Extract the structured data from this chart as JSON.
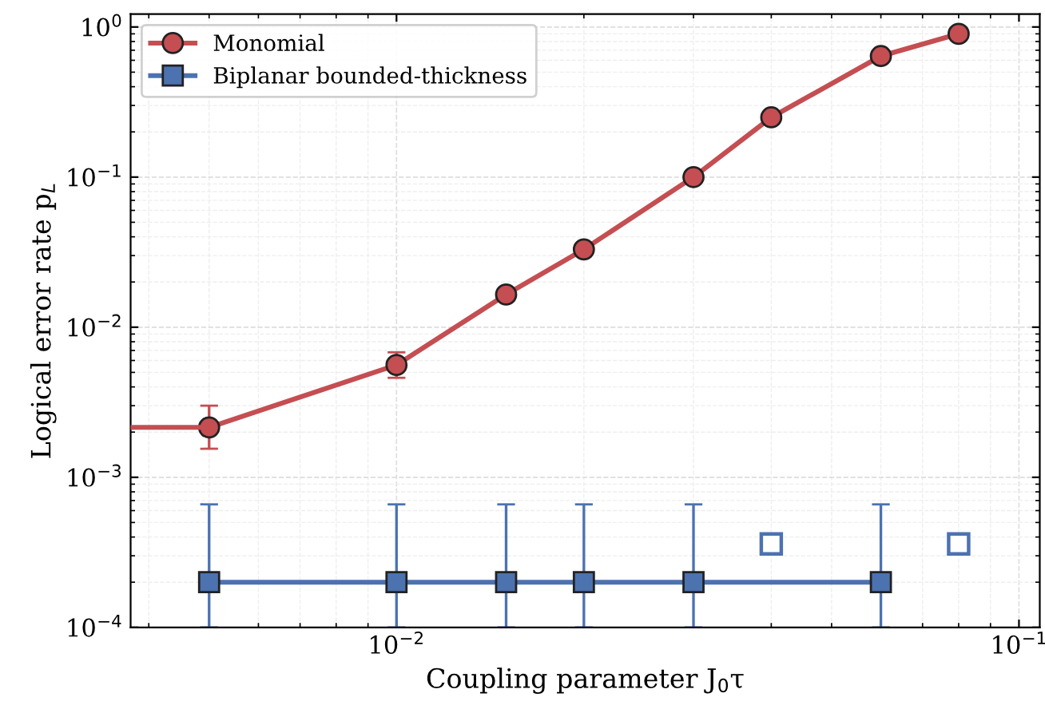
{
  "chart_data": {
    "type": "line",
    "xlabel": "Coupling parameter J$_{0}$τ",
    "ylabel": "Logical error rate p$_{L}$",
    "log": "xy",
    "xlim": [
      0.00374,
      0.108
    ],
    "ylim": [
      0.0001,
      1.22
    ],
    "xticks": [
      {
        "value": 0.01,
        "label": "10$^{−2}$"
      },
      {
        "value": 0.1,
        "label": "10$^{−1}$"
      }
    ],
    "yticks": [
      {
        "value": 0.0001,
        "label": "10$^{−4}$"
      },
      {
        "value": 0.001,
        "label": "10$^{−3}$"
      },
      {
        "value": 0.01,
        "label": "10$^{−2}$"
      },
      {
        "value": 0.1,
        "label": "10$^{−1}$"
      },
      {
        "value": 1,
        "label": "10$^{0}$"
      }
    ],
    "grid": true,
    "legend": "top left",
    "series": [
      {
        "name": "Monomial",
        "color": "#c44e52",
        "marker": "circle",
        "x": [
          0.005,
          0.01,
          0.015,
          0.02,
          0.03,
          0.04,
          0.06,
          0.08
        ],
        "values": [
          0.00215,
          0.0056,
          0.0165,
          0.033,
          0.1,
          0.25,
          0.64,
          0.9
        ],
        "errors": [
          [
            0.00155,
            0.003
          ],
          [
            0.0046,
            0.0068
          ],
          null,
          null,
          null,
          null,
          null,
          null
        ]
      },
      {
        "color": "#c44e52",
        "marker": "none",
        "x": [
          0.00374,
          0.005
        ],
        "values": [
          0.00215,
          0.00215
        ]
      },
      {
        "name": "Biplanar bounded-thickness",
        "color": "#4c72b0",
        "marker": "square",
        "x": [
          0.005,
          0.01,
          0.015,
          0.02,
          0.03,
          0.06
        ],
        "values": [
          0.0002,
          0.0002,
          0.0002,
          0.0002,
          0.0002,
          0.0002
        ],
        "errors": [
          [
            0.0001,
            0.00066
          ],
          [
            0.0001,
            0.00066
          ],
          [
            0.0001,
            0.00066
          ],
          [
            0.0001,
            0.00066
          ],
          [
            0.0001,
            0.00066
          ],
          [
            0.0001,
            0.00066
          ]
        ]
      },
      {
        "type": "scatter",
        "color": "#4c72b0",
        "marker": "square",
        "x": [
          0.04,
          0.08
        ],
        "values": [
          0.00036,
          0.00036
        ]
      }
    ]
  }
}
